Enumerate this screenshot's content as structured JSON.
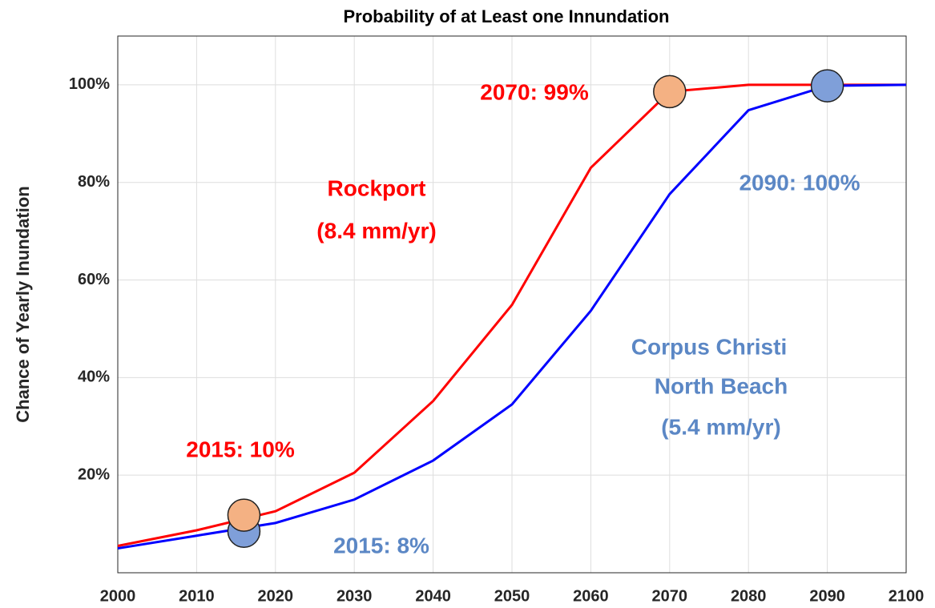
{
  "chart_data": {
    "type": "line",
    "title": "Probability of at Least one Innundation",
    "ylabel": "Chance of Yearly Inundation",
    "xlim": [
      2000,
      2100
    ],
    "xticks": [
      2000,
      2010,
      2020,
      2030,
      2040,
      2050,
      2060,
      2070,
      2080,
      2090,
      2100
    ],
    "ylim": [
      0,
      110
    ],
    "yticks": [
      {
        "value": 20,
        "label": "20%"
      },
      {
        "value": 40,
        "label": "40%"
      },
      {
        "value": 60,
        "label": "60%"
      },
      {
        "value": 80,
        "label": "80%"
      },
      {
        "value": 100,
        "label": "100%"
      }
    ],
    "grid": true,
    "x": [
      2000,
      2010,
      2020,
      2030,
      2040,
      2050,
      2060,
      2070,
      2080,
      2090,
      2100
    ],
    "series": [
      {
        "color": "#ff0000",
        "values": [
          5.5,
          8.7,
          12.6,
          20.5,
          35.2,
          54.9,
          83,
          98.6,
          100,
          100,
          100
        ]
      },
      {
        "color": "#0000ff",
        "values": [
          5,
          7.6,
          10.2,
          15,
          23,
          34.5,
          53.7,
          77.6,
          94.8,
          99.8,
          100
        ]
      }
    ],
    "markers": [
      {
        "x": 2016,
        "y": 8.5,
        "color": "#7f9fd9"
      },
      {
        "x": 2016,
        "y": 11.8,
        "color": "#f4b183"
      },
      {
        "x": 2070,
        "y": 98.6,
        "color": "#f4b183"
      },
      {
        "x": 2090,
        "y": 99.8,
        "color": "#7f9fd9"
      }
    ],
    "annotations": [
      {
        "text": "2070: 99%",
        "color": "#ff0000"
      },
      {
        "text": "Rockport",
        "color": "#ff0000"
      },
      {
        "text": "(8.4 mm/yr)",
        "color": "#ff0000"
      },
      {
        "text": "2090: 100%",
        "color": "#5b87c5"
      },
      {
        "text": "Corpus Christi",
        "color": "#5b87c5"
      },
      {
        "text": "North Beach",
        "color": "#5b87c5"
      },
      {
        "text": "(5.4 mm/yr)",
        "color": "#5b87c5"
      },
      {
        "text": "2015: 10%",
        "color": "#ff0000"
      },
      {
        "text": "2015: 8%",
        "color": "#5b87c5"
      }
    ]
  }
}
